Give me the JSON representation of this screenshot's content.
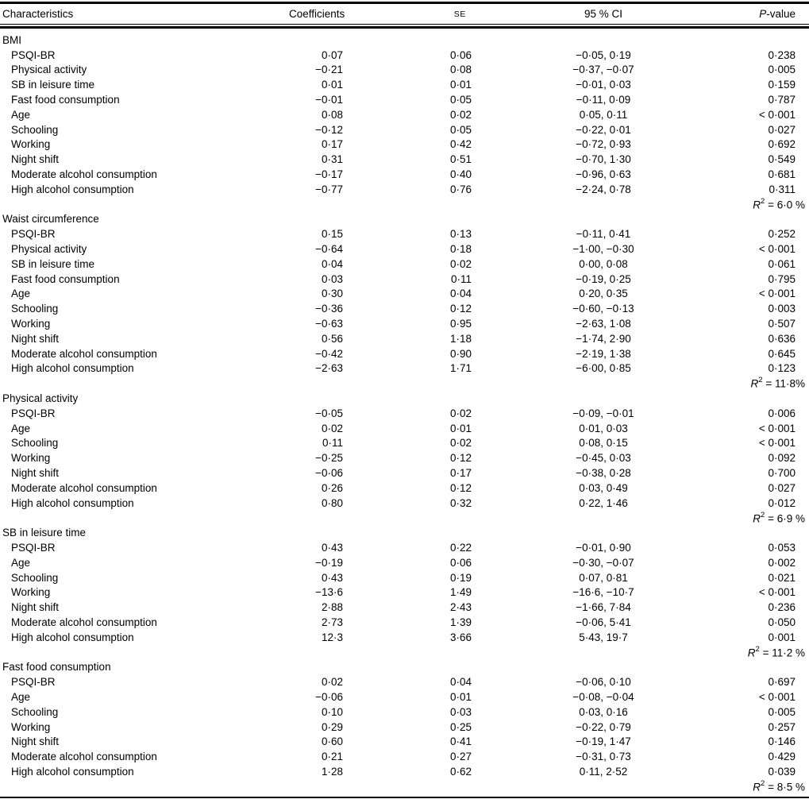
{
  "page": {
    "background": "#ffffff",
    "text_color": "#000000"
  },
  "table": {
    "header": {
      "characteristics": "Characteristics",
      "coefficients": "Coefficients",
      "se": "SE",
      "ci": "95 % CI",
      "p_italic": "P",
      "p_rest": "-value"
    },
    "r2_label": {
      "base": "R",
      "sup": "2"
    },
    "sections": [
      {
        "title": "BMI",
        "rows": [
          {
            "label": "PSQI-BR",
            "coefficient": "0·07",
            "se": "0·06",
            "ci": "−0·05, 0·19",
            "p": "0·238"
          },
          {
            "label": "Physical activity",
            "coefficient": "−0·21",
            "se": "0·08",
            "ci": "−0·37, −0·07",
            "p": "0·005"
          },
          {
            "label": "SB in leisure time",
            "coefficient": "0·01",
            "se": "0·01",
            "ci": "−0·01, 0·03",
            "p": "0·159"
          },
          {
            "label": "Fast food consumption",
            "coefficient": "−0·01",
            "se": "0·05",
            "ci": "−0·11, 0·09",
            "p": "0·787"
          },
          {
            "label": "Age",
            "coefficient": "0·08",
            "se": "0·02",
            "ci": "0·05, 0·11",
            "p": "< 0·001"
          },
          {
            "label": "Schooling",
            "coefficient": "−0·12",
            "se": "0·05",
            "ci": "−0·22, 0·01",
            "p": "0·027"
          },
          {
            "label": "Working",
            "coefficient": "0·17",
            "se": "0·42",
            "ci": "−0·72, 0·93",
            "p": "0·692"
          },
          {
            "label": "Night shift",
            "coefficient": "0·31",
            "se": "0·51",
            "ci": "−0·70, 1·30",
            "p": "0·549"
          },
          {
            "label": "Moderate alcohol consumption",
            "coefficient": "−0·17",
            "se": "0·40",
            "ci": "−0·96, 0·63",
            "p": "0·681"
          },
          {
            "label": "High alcohol consumption",
            "coefficient": "−0·77",
            "se": "0·76",
            "ci": "−2·24, 0·78",
            "p": "0·311"
          }
        ],
        "r2_text": "= 6·0 %"
      },
      {
        "title": "Waist circumference",
        "rows": [
          {
            "label": "PSQI-BR",
            "coefficient": "0·15",
            "se": "0·13",
            "ci": "−0·11, 0·41",
            "p": "0·252"
          },
          {
            "label": "Physical activity",
            "coefficient": "−0·64",
            "se": "0·18",
            "ci": "−1·00, −0·30",
            "p": "< 0·001"
          },
          {
            "label": "SB in leisure time",
            "coefficient": "0·04",
            "se": "0·02",
            "ci": "0·00, 0·08",
            "p": "0·061"
          },
          {
            "label": "Fast food consumption",
            "coefficient": "0·03",
            "se": "0·11",
            "ci": "−0·19, 0·25",
            "p": "0·795"
          },
          {
            "label": "Age",
            "coefficient": "0·30",
            "se": "0·04",
            "ci": "0·20, 0·35",
            "p": "< 0·001"
          },
          {
            "label": "Schooling",
            "coefficient": "−0·36",
            "se": "0·12",
            "ci": "−0·60, −0·13",
            "p": "0·003"
          },
          {
            "label": "Working",
            "coefficient": "−0·63",
            "se": "0·95",
            "ci": "−2·63, 1·08",
            "p": "0·507"
          },
          {
            "label": "Night shift",
            "coefficient": "0·56",
            "se": "1·18",
            "ci": "−1·74, 2·90",
            "p": "0·636"
          },
          {
            "label": "Moderate alcohol consumption",
            "coefficient": "−0·42",
            "se": "0·90",
            "ci": "−2·19, 1·38",
            "p": "0·645"
          },
          {
            "label": "High alcohol consumption",
            "coefficient": "−2·63",
            "se": "1·71",
            "ci": "−6·00, 0·85",
            "p": "0·123"
          }
        ],
        "r2_text": "= 11·8%"
      },
      {
        "title": "Physical activity",
        "rows": [
          {
            "label": "PSQI-BR",
            "coefficient": "−0·05",
            "se": "0·02",
            "ci": "−0·09, −0·01",
            "p": "0·006"
          },
          {
            "label": "Age",
            "coefficient": "0·02",
            "se": "0·01",
            "ci": "0·01, 0·03",
            "p": "< 0·001"
          },
          {
            "label": "Schooling",
            "coefficient": "0·11",
            "se": "0·02",
            "ci": "0·08, 0·15",
            "p": "< 0·001"
          },
          {
            "label": "Working",
            "coefficient": "−0·25",
            "se": "0·12",
            "ci": "−0·45, 0·03",
            "p": "0·092"
          },
          {
            "label": "Night shift",
            "coefficient": "−0·06",
            "se": "0·17",
            "ci": "−0·38, 0·28",
            "p": "0·700"
          },
          {
            "label": "Moderate alcohol consumption",
            "coefficient": "0·26",
            "se": "0·12",
            "ci": "0·03, 0·49",
            "p": "0·027"
          },
          {
            "label": "High alcohol consumption",
            "coefficient": "0·80",
            "se": "0·32",
            "ci": "0·22, 1·46",
            "p": "0·012"
          }
        ],
        "r2_text": "= 6·9 %"
      },
      {
        "title": "SB in leisure time",
        "rows": [
          {
            "label": "PSQI-BR",
            "coefficient": "0·43",
            "se": "0·22",
            "ci": "−0·01, 0·90",
            "p": "0·053"
          },
          {
            "label": "Age",
            "coefficient": "−0·19",
            "se": "0·06",
            "ci": "−0·30, −0·07",
            "p": "0·002"
          },
          {
            "label": "Schooling",
            "coefficient": "0·43",
            "se": "0·19",
            "ci": "0·07, 0·81",
            "p": "0·021"
          },
          {
            "label": "Working",
            "coefficient": "−13·6",
            "se": "1·49",
            "ci": "−16·6, −10·7",
            "p": "< 0·001"
          },
          {
            "label": "Night shift",
            "coefficient": "2·88",
            "se": "2·43",
            "ci": "−1·66, 7·84",
            "p": "0·236"
          },
          {
            "label": "Moderate alcohol consumption",
            "coefficient": "2·73",
            "se": "1·39",
            "ci": "−0·06, 5·41",
            "p": "0·050"
          },
          {
            "label": "High alcohol consumption",
            "coefficient": "12·3",
            "se": "3·66",
            "ci": "5·43, 19·7",
            "p": "0·001"
          }
        ],
        "r2_text": "= 11·2 %"
      },
      {
        "title": "Fast food consumption",
        "rows": [
          {
            "label": "PSQI-BR",
            "coefficient": "0·02",
            "se": "0·04",
            "ci": "−0·06, 0·10",
            "p": "0·697"
          },
          {
            "label": "Age",
            "coefficient": "−0·06",
            "se": "0·01",
            "ci": "−0·08, −0·04",
            "p": "< 0·001"
          },
          {
            "label": "Schooling",
            "coefficient": "0·10",
            "se": "0·03",
            "ci": "0·03, 0·16",
            "p": "0·005"
          },
          {
            "label": "Working",
            "coefficient": "0·29",
            "se": "0·25",
            "ci": "−0·22, 0·79",
            "p": "0·257"
          },
          {
            "label": "Night shift",
            "coefficient": "0·60",
            "se": "0·41",
            "ci": "−0·19, 1·47",
            "p": "0·146"
          },
          {
            "label": "Moderate alcohol consumption",
            "coefficient": "0·21",
            "se": "0·27",
            "ci": "−0·31, 0·73",
            "p": "0·429"
          },
          {
            "label": "High alcohol consumption",
            "coefficient": "1·28",
            "se": "0·62",
            "ci": "0·11, 2·52",
            "p": "0·039"
          }
        ],
        "r2_text": "= 8·5 %"
      }
    ]
  }
}
